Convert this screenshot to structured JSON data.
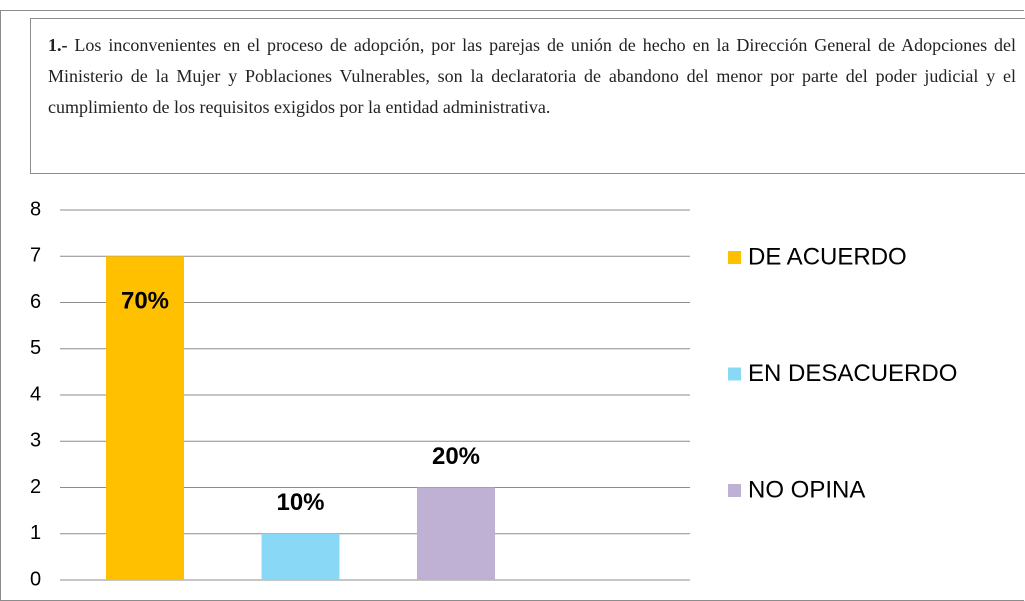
{
  "chart_data": {
    "type": "bar",
    "title_number": "1.-",
    "title": "Los inconvenientes en el proceso de adopción, por las parejas de unión de hecho en la Dirección General de Adopciones del Ministerio de la Mujer y Poblaciones Vulnerables, son la declaratoria de abandono del menor por parte del poder judicial y el cumplimiento de los requisitos exigidos por la entidad administrativa.",
    "series": [
      {
        "name": "DE ACUERDO",
        "color": "#ffc000",
        "values": [
          7
        ],
        "value_labels": [
          "70%"
        ]
      },
      {
        "name": "EN DESACUERDO",
        "color": "#89d8f6",
        "values": [
          1
        ],
        "value_labels": [
          "10%"
        ]
      },
      {
        "name": "NO OPINA",
        "color": "#bfb1d4",
        "values": [
          2
        ],
        "value_labels": [
          "20%"
        ]
      }
    ],
    "ylim": [
      0,
      8
    ],
    "yticks": [
      0,
      1,
      2,
      3,
      4,
      5,
      6,
      7,
      8
    ],
    "grid": true,
    "legend": "right"
  }
}
